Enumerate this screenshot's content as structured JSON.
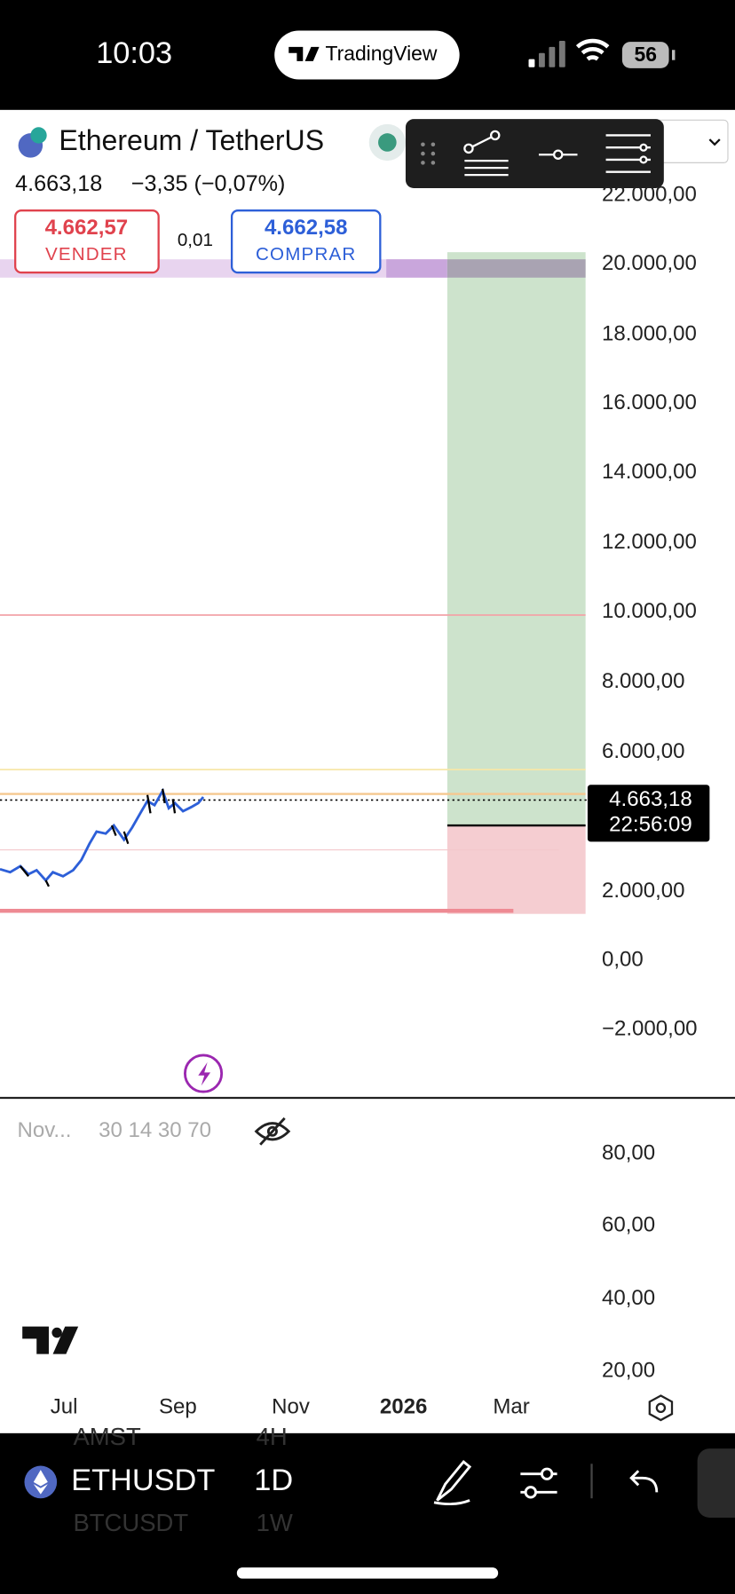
{
  "status_bar": {
    "time": "10:03",
    "app": "TradingView",
    "battery": "56"
  },
  "header": {
    "symbol": "Ethereum / TetherUS",
    "price": "4.663,18",
    "change": "−3,35 (−0,07%)",
    "sell": {
      "price": "4.662,57",
      "label": "VENDER"
    },
    "spread": "0,01",
    "buy": {
      "price": "4.662,58",
      "label": "COMPRAR"
    }
  },
  "price_axis": [
    "22.000,00",
    "20.000,00",
    "18.000,00",
    "16.000,00",
    "14.000,00",
    "12.000,00",
    "10.000,00",
    "8.000,00",
    "6.000,00",
    "2.000,00",
    "0,00",
    "−2.000,00"
  ],
  "current_price": {
    "price": "4.663,18",
    "countdown": "22:56:09"
  },
  "indicator": {
    "name": "Nov...",
    "params": "30 14 30 70"
  },
  "indicator_axis": [
    "80,00",
    "60,00",
    "40,00",
    "20,00"
  ],
  "time_axis": [
    "Jul",
    "Sep",
    "Nov",
    "2026",
    "Mar"
  ],
  "bottom_bar": {
    "symbol": "ETHUSDT",
    "interval": "1D",
    "symbol_above": "AMST",
    "symbol_below": "BTCUSDT",
    "interval_above": "4H",
    "interval_below": "1W"
  }
}
